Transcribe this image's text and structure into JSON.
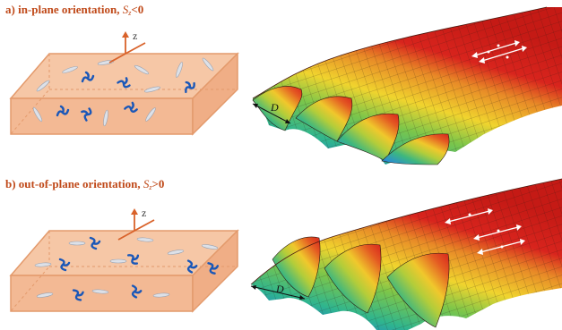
{
  "panels": [
    {
      "id": "a",
      "title_prefix": "a) in-plane orientation,",
      "order_symbol": "S",
      "order_subscript": "z",
      "order_relation": "<0",
      "axis_label": "z",
      "width_label": "D"
    },
    {
      "id": "b",
      "title_prefix": "b) out-of-plane orientation,",
      "order_symbol": "S",
      "order_subscript": "z",
      "order_relation": ">0",
      "axis_label": "z",
      "width_label": "D"
    }
  ],
  "colors": {
    "title": "#c04a1a",
    "slab_face": "#f6c7a6",
    "slab_edge": "#e39a6c",
    "molecule_rod": "#d8dce3",
    "molecule_coil": "#1a57b8",
    "axis": "#d9622a",
    "mesh_high": "#d8241d",
    "mesh_mid": "#f0d42e",
    "mesh_low": "#1b2f9c"
  }
}
